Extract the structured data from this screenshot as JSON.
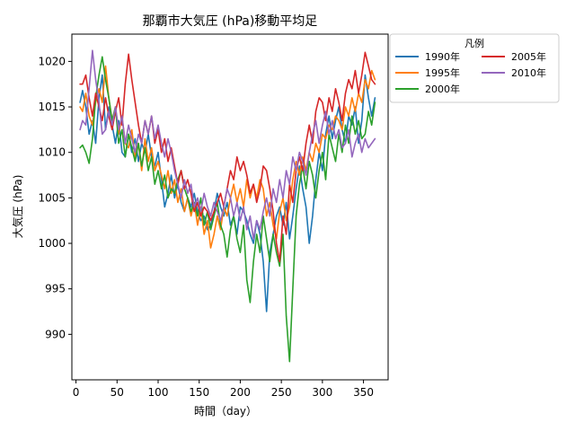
{
  "chart_data": {
    "type": "line",
    "title": "那覇市大気圧 (hPa)移動平均足",
    "xlabel": "時間（day）",
    "ylabel": "大気圧 (hPa)",
    "xlim": [
      -5,
      380
    ],
    "ylim": [
      985,
      1023
    ],
    "x_ticks": [
      0,
      50,
      100,
      150,
      200,
      250,
      300,
      350
    ],
    "y_ticks": [
      990,
      995,
      1000,
      1005,
      1010,
      1015,
      1020
    ],
    "x_tick_labels": [
      "0",
      "50",
      "100",
      "150",
      "200",
      "250",
      "300",
      "350"
    ],
    "y_tick_labels": [
      "990",
      "995",
      "1000",
      "1005",
      "1010",
      "1015",
      "1020"
    ],
    "grid": false,
    "legend": {
      "title": "凡例",
      "placement": "outside-top-right",
      "columns": 2
    },
    "series": [
      {
        "name": "1990年",
        "color": "#1f77b4",
        "x": [
          5,
          8,
          12,
          16,
          20,
          24,
          28,
          32,
          36,
          40,
          44,
          48,
          52,
          56,
          60,
          64,
          68,
          72,
          76,
          80,
          84,
          88,
          92,
          96,
          100,
          104,
          108,
          112,
          116,
          120,
          124,
          128,
          132,
          136,
          140,
          144,
          148,
          152,
          156,
          160,
          164,
          168,
          172,
          176,
          180,
          184,
          188,
          192,
          196,
          200,
          204,
          208,
          212,
          216,
          220,
          224,
          228,
          232,
          236,
          240,
          244,
          248,
          252,
          256,
          260,
          264,
          268,
          272,
          276,
          280,
          284,
          288,
          292,
          296,
          300,
          304,
          308,
          312,
          316,
          320,
          324,
          328,
          332,
          336,
          340,
          344,
          348,
          352,
          356,
          360,
          364
        ],
        "values": [
          1015.5,
          1016.8,
          1015.0,
          1012.0,
          1013.5,
          1011.0,
          1016.0,
          1018.5,
          1012.5,
          1015.0,
          1013.0,
          1011.0,
          1013.5,
          1010.0,
          1009.5,
          1012.0,
          1010.0,
          1011.5,
          1009.0,
          1011.0,
          1010.0,
          1012.0,
          1009.5,
          1008.5,
          1010.0,
          1007.0,
          1004.0,
          1005.5,
          1007.5,
          1005.0,
          1006.5,
          1004.5,
          1003.5,
          1005.0,
          1004.0,
          1005.5,
          1003.5,
          1002.5,
          1003.0,
          1001.5,
          1002.0,
          1003.5,
          1005.5,
          1004.0,
          1003.0,
          1004.5,
          1002.0,
          1003.0,
          1001.0,
          1004.0,
          1003.5,
          1002.5,
          1001.0,
          1000.0,
          1002.5,
          1001.0,
          998.0,
          992.5,
          999.0,
          1001.0,
          1003.0,
          1004.0,
          1002.0,
          1004.5,
          1000.5,
          1003.0,
          1006.0,
          1008.5,
          1006.0,
          1004.0,
          1000.0,
          1003.0,
          1007.0,
          1010.0,
          1008.0,
          1012.0,
          1014.0,
          1011.5,
          1013.5,
          1015.0,
          1012.5,
          1011.0,
          1014.0,
          1013.0,
          1015.0,
          1011.0,
          1013.5,
          1018.5,
          1016.0,
          1014.0,
          1016.0
        ]
      },
      {
        "name": "1995年",
        "color": "#ff7f0e",
        "x": [
          5,
          8,
          12,
          16,
          20,
          24,
          28,
          32,
          36,
          40,
          44,
          48,
          52,
          56,
          60,
          64,
          68,
          72,
          76,
          80,
          84,
          88,
          92,
          96,
          100,
          104,
          108,
          112,
          116,
          120,
          124,
          128,
          132,
          136,
          140,
          144,
          148,
          152,
          156,
          160,
          164,
          168,
          172,
          176,
          180,
          184,
          188,
          192,
          196,
          200,
          204,
          208,
          212,
          216,
          220,
          224,
          228,
          232,
          236,
          240,
          244,
          248,
          252,
          256,
          260,
          264,
          268,
          272,
          276,
          280,
          284,
          288,
          292,
          296,
          300,
          304,
          308,
          312,
          316,
          320,
          324,
          328,
          332,
          336,
          340,
          344,
          348,
          352,
          356,
          360,
          364
        ],
        "values": [
          1015.0,
          1014.5,
          1016.5,
          1014.0,
          1013.0,
          1015.5,
          1017.0,
          1015.5,
          1019.5,
          1016.0,
          1013.5,
          1015.0,
          1012.0,
          1014.0,
          1011.0,
          1010.5,
          1012.5,
          1009.5,
          1011.0,
          1008.0,
          1011.5,
          1009.0,
          1010.5,
          1008.0,
          1009.0,
          1007.5,
          1006.0,
          1008.0,
          1005.5,
          1007.0,
          1004.5,
          1006.0,
          1003.5,
          1005.0,
          1003.0,
          1004.5,
          1002.0,
          1004.0,
          1001.0,
          1002.5,
          999.5,
          1001.0,
          1003.0,
          1001.5,
          1004.0,
          1003.0,
          1005.0,
          1006.5,
          1004.5,
          1006.0,
          1004.0,
          1007.0,
          1005.0,
          1006.5,
          1005.0,
          1007.0,
          1006.0,
          1003.0,
          1004.5,
          1002.0,
          1000.5,
          1003.5,
          1005.0,
          1002.5,
          1004.0,
          1007.0,
          1009.0,
          1007.5,
          1009.5,
          1008.0,
          1010.0,
          1009.0,
          1011.0,
          1010.0,
          1012.0,
          1011.5,
          1013.0,
          1012.5,
          1014.0,
          1013.5,
          1012.5,
          1015.0,
          1014.0,
          1016.0,
          1014.5,
          1016.5,
          1015.5,
          1018.0,
          1017.0,
          1019.0,
          1018.0
        ]
      },
      {
        "name": "2000年",
        "color": "#2ca02c",
        "x": [
          5,
          8,
          12,
          16,
          20,
          24,
          28,
          32,
          36,
          40,
          44,
          48,
          52,
          56,
          60,
          64,
          68,
          72,
          76,
          80,
          84,
          88,
          92,
          96,
          100,
          104,
          108,
          112,
          116,
          120,
          124,
          128,
          132,
          136,
          140,
          144,
          148,
          152,
          156,
          160,
          164,
          168,
          172,
          176,
          180,
          184,
          188,
          192,
          196,
          200,
          204,
          208,
          212,
          216,
          220,
          224,
          228,
          232,
          236,
          240,
          244,
          248,
          252,
          256,
          260,
          264,
          268,
          272,
          276,
          280,
          284,
          288,
          292,
          296,
          300,
          304,
          308,
          312,
          316,
          320,
          324,
          328,
          332,
          336,
          340,
          344,
          348,
          352,
          356,
          360,
          364
        ],
        "values": [
          1010.5,
          1010.8,
          1010.0,
          1008.8,
          1011.5,
          1016.0,
          1018.5,
          1020.5,
          1018.0,
          1016.0,
          1013.5,
          1015.0,
          1011.0,
          1012.5,
          1009.5,
          1012.0,
          1010.5,
          1009.0,
          1011.0,
          1008.5,
          1010.5,
          1008.0,
          1009.5,
          1006.5,
          1008.0,
          1006.0,
          1007.5,
          1005.0,
          1006.0,
          1005.5,
          1007.0,
          1008.0,
          1006.0,
          1005.0,
          1003.5,
          1004.5,
          1003.0,
          1005.0,
          1002.0,
          1003.5,
          1001.5,
          1003.0,
          1004.5,
          1002.0,
          1001.0,
          998.5,
          1001.5,
          1003.0,
          1000.5,
          999.0,
          1002.0,
          996.0,
          993.5,
          998.0,
          1001.0,
          999.0,
          1003.0,
          1000.5,
          998.0,
          1001.0,
          999.0,
          997.5,
          1001.0,
          992.0,
          987.0,
          995.0,
          1003.0,
          1006.5,
          1008.5,
          1006.0,
          1009.0,
          1007.5,
          1005.0,
          1008.0,
          1010.0,
          1007.0,
          1012.0,
          1010.5,
          1009.0,
          1012.0,
          1010.0,
          1013.0,
          1011.0,
          1014.0,
          1012.0,
          1013.5,
          1011.5,
          1012.0,
          1014.5,
          1013.0,
          1015.5
        ]
      },
      {
        "name": "2005年",
        "color": "#d62728",
        "x": [
          5,
          8,
          12,
          16,
          20,
          24,
          28,
          32,
          36,
          40,
          44,
          48,
          52,
          56,
          60,
          64,
          68,
          72,
          76,
          80,
          84,
          88,
          92,
          96,
          100,
          104,
          108,
          112,
          116,
          120,
          124,
          128,
          132,
          136,
          140,
          144,
          148,
          152,
          156,
          160,
          164,
          168,
          172,
          176,
          180,
          184,
          188,
          192,
          196,
          200,
          204,
          208,
          212,
          216,
          220,
          224,
          228,
          232,
          236,
          240,
          244,
          248,
          252,
          256,
          260,
          264,
          268,
          272,
          276,
          280,
          284,
          288,
          292,
          296,
          300,
          304,
          308,
          312,
          316,
          320,
          324,
          328,
          332,
          336,
          340,
          344,
          348,
          352,
          356,
          360,
          364
        ],
        "values": [
          1017.5,
          1017.5,
          1018.5,
          1016.0,
          1014.0,
          1016.5,
          1015.0,
          1013.5,
          1016.0,
          1014.0,
          1012.5,
          1014.5,
          1016.0,
          1013.0,
          1017.5,
          1020.8,
          1018.0,
          1015.5,
          1013.0,
          1011.0,
          1013.5,
          1012.0,
          1014.0,
          1011.0,
          1012.5,
          1010.0,
          1011.5,
          1009.0,
          1010.5,
          1008.5,
          1006.5,
          1008.0,
          1006.0,
          1007.0,
          1005.5,
          1003.5,
          1004.5,
          1003.0,
          1004.0,
          1003.5,
          1002.5,
          1003.5,
          1004.5,
          1005.5,
          1004.0,
          1006.0,
          1008.0,
          1007.0,
          1009.5,
          1008.0,
          1009.0,
          1007.5,
          1005.5,
          1006.5,
          1004.5,
          1006.0,
          1008.5,
          1008.0,
          1006.0,
          1003.5,
          1000.0,
          998.0,
          1003.0,
          1001.0,
          1006.5,
          1004.5,
          1008.0,
          1009.5,
          1008.0,
          1011.0,
          1013.0,
          1011.0,
          1014.5,
          1016.0,
          1015.5,
          1013.5,
          1016.0,
          1014.5,
          1017.0,
          1015.5,
          1013.5,
          1016.5,
          1018.0,
          1017.0,
          1019.0,
          1016.5,
          1018.5,
          1021.0,
          1019.5,
          1018.0,
          1017.5
        ]
      },
      {
        "name": "2010年",
        "color": "#9467bd",
        "x": [
          5,
          8,
          12,
          16,
          20,
          24,
          28,
          32,
          36,
          40,
          44,
          48,
          52,
          56,
          60,
          64,
          68,
          72,
          76,
          80,
          84,
          88,
          92,
          96,
          100,
          104,
          108,
          112,
          116,
          120,
          124,
          128,
          132,
          136,
          140,
          144,
          148,
          152,
          156,
          160,
          164,
          168,
          172,
          176,
          180,
          184,
          188,
          192,
          196,
          200,
          204,
          208,
          212,
          216,
          220,
          224,
          228,
          232,
          236,
          240,
          244,
          248,
          252,
          256,
          260,
          264,
          268,
          272,
          276,
          280,
          284,
          288,
          292,
          296,
          300,
          304,
          308,
          312,
          316,
          320,
          324,
          328,
          332,
          336,
          340,
          344,
          348,
          352,
          356,
          360,
          364
        ],
        "values": [
          1012.5,
          1013.5,
          1013.0,
          1017.0,
          1021.2,
          1018.0,
          1015.5,
          1012.0,
          1012.5,
          1014.5,
          1013.0,
          1015.0,
          1012.5,
          1014.0,
          1011.0,
          1013.0,
          1011.5,
          1010.0,
          1012.0,
          1011.0,
          1013.5,
          1012.0,
          1014.0,
          1011.5,
          1013.0,
          1011.0,
          1009.5,
          1011.5,
          1010.0,
          1008.0,
          1006.5,
          1005.0,
          1007.0,
          1005.5,
          1006.5,
          1004.0,
          1005.0,
          1003.5,
          1005.5,
          1004.0,
          1003.0,
          1004.5,
          1003.5,
          1002.5,
          1004.0,
          1006.0,
          1005.0,
          1003.0,
          1004.5,
          1002.5,
          1004.0,
          1001.5,
          1003.0,
          1000.5,
          1002.5,
          1001.5,
          1003.5,
          1005.0,
          1003.0,
          1006.0,
          1004.5,
          1007.0,
          1005.0,
          1008.0,
          1006.5,
          1009.5,
          1008.0,
          1010.0,
          1009.0,
          1007.5,
          1010.0,
          1012.0,
          1013.5,
          1011.0,
          1013.0,
          1014.5,
          1012.0,
          1013.5,
          1011.5,
          1012.5,
          1010.5,
          1011.0,
          1012.5,
          1009.5,
          1011.0,
          1012.0,
          1010.0,
          1011.5,
          1010.5,
          1011.0,
          1011.5
        ]
      }
    ]
  }
}
